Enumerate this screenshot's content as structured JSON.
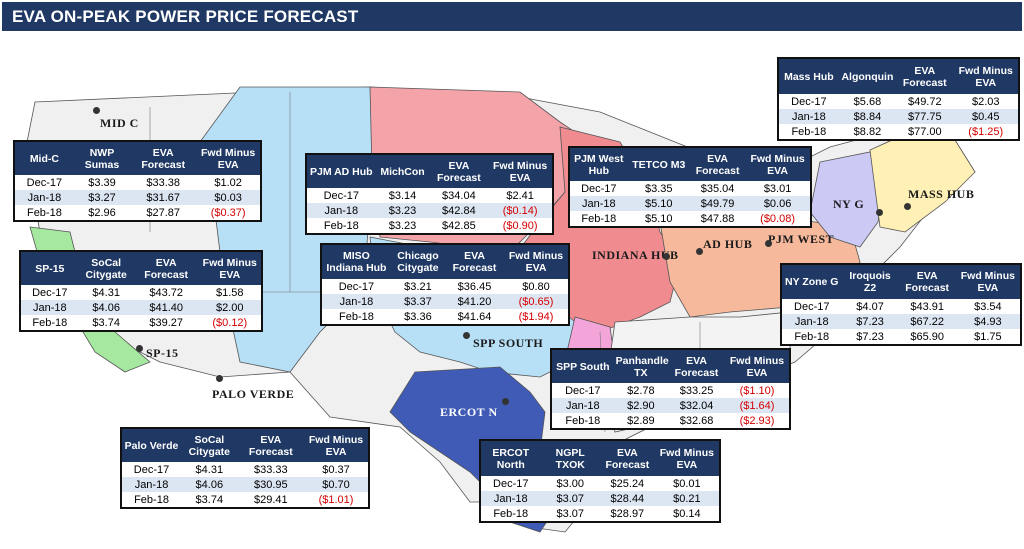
{
  "title": "EVA ON-PEAK POWER PRICE FORECAST",
  "colors": {
    "header": "#1f3864",
    "negative": "#d40000",
    "alt_row": "#dce6f2",
    "region_pink": "#f4a3a8",
    "region_salmon": "#f6b99c",
    "region_red": "#f08c90",
    "region_lightblue": "#b7e0f7",
    "region_darkblue": "#3f5bb5",
    "region_green": "#a7e8a0",
    "region_lavender": "#ccc9f5",
    "region_yellow": "#fff0b5",
    "region_magenta": "#f3a5d9"
  },
  "map_labels": {
    "mid_c": "MID C",
    "sp15": "SP-15",
    "palo_verde": "PALO VERDE",
    "ercot_n": "ERCOT N",
    "spp_south": "SPP SOUTH",
    "indiana_hub": "INDIANA HUB",
    "ad_hub": "AD HUB",
    "pjm_west": "PJM WEST",
    "ny_g": "NY G",
    "mass_hub": "MASS HUB"
  },
  "tables": {
    "midc": {
      "headers": [
        "Mid-C",
        "NWP Sumas",
        "EVA Forecast",
        "Fwd Minus EVA"
      ],
      "rows": [
        [
          "Dec-17",
          "$3.39",
          "$33.38",
          "$1.02"
        ],
        [
          "Jan-18",
          "$3.27",
          "$31.67",
          "$0.03"
        ],
        [
          "Feb-18",
          "$2.96",
          "$27.87",
          "($0.37)"
        ]
      ]
    },
    "sp15": {
      "headers": [
        "SP-15",
        "SoCal Citygate",
        "EVA Forecast",
        "Fwd Minus EVA"
      ],
      "rows": [
        [
          "Dec-17",
          "$4.31",
          "$43.72",
          "$1.58"
        ],
        [
          "Jan-18",
          "$4.06",
          "$41.40",
          "$2.00"
        ],
        [
          "Feb-18",
          "$3.74",
          "$39.27",
          "($0.12)"
        ]
      ]
    },
    "paloverde": {
      "headers": [
        "Palo Verde",
        "SoCal Citygate",
        "EVA Forecast",
        "Fwd Minus EVA"
      ],
      "rows": [
        [
          "Dec-17",
          "$4.31",
          "$33.33",
          "$0.37"
        ],
        [
          "Jan-18",
          "$4.06",
          "$30.95",
          "$0.70"
        ],
        [
          "Feb-18",
          "$3.74",
          "$29.41",
          "($1.01)"
        ]
      ]
    },
    "pjmad": {
      "headers": [
        "PJM AD Hub",
        "MichCon",
        "EVA Forecast",
        "Fwd Minus EVA"
      ],
      "rows": [
        [
          "Dec-17",
          "$3.14",
          "$34.04",
          "$2.41"
        ],
        [
          "Jan-18",
          "$3.23",
          "$42.84",
          "($0.14)"
        ],
        [
          "Feb-18",
          "$3.23",
          "$42.85",
          "($0.90)"
        ]
      ]
    },
    "miso": {
      "headers": [
        "MISO Indiana Hub",
        "Chicago Citygate",
        "EVA Forecast",
        "Fwd Minus EVA"
      ],
      "rows": [
        [
          "Dec-17",
          "$3.21",
          "$36.45",
          "$0.80"
        ],
        [
          "Jan-18",
          "$3.37",
          "$41.20",
          "($0.65)"
        ],
        [
          "Feb-18",
          "$3.36",
          "$41.64",
          "($1.94)"
        ]
      ]
    },
    "pjmwest": {
      "headers": [
        "PJM West Hub",
        "TETCO M3",
        "EVA Forecast",
        "Fwd Minus EVA"
      ],
      "rows": [
        [
          "Dec-17",
          "$3.35",
          "$35.04",
          "$3.01"
        ],
        [
          "Jan-18",
          "$5.10",
          "$49.79",
          "$0.06"
        ],
        [
          "Feb-18",
          "$5.10",
          "$47.88",
          "($0.08)"
        ]
      ]
    },
    "masshub": {
      "headers": [
        "Mass Hub",
        "Algonquin",
        "EVA Forecast",
        "Fwd Minus EVA"
      ],
      "rows": [
        [
          "Dec-17",
          "$5.68",
          "$49.72",
          "$2.03"
        ],
        [
          "Jan-18",
          "$8.84",
          "$77.75",
          "$0.45"
        ],
        [
          "Feb-18",
          "$8.82",
          "$77.00",
          "($1.25)"
        ]
      ]
    },
    "nyzoneg": {
      "headers": [
        "NY Zone G",
        "Iroquois Z2",
        "EVA Forecast",
        "Fwd Minus EVA"
      ],
      "rows": [
        [
          "Dec-17",
          "$4.07",
          "$43.91",
          "$3.54"
        ],
        [
          "Jan-18",
          "$7.23",
          "$67.22",
          "$4.93"
        ],
        [
          "Feb-18",
          "$7.23",
          "$65.90",
          "$1.75"
        ]
      ]
    },
    "sppsouth": {
      "headers": [
        "SPP South",
        "Panhandle TX",
        "EVA Forecast",
        "Fwd Minus EVA"
      ],
      "rows": [
        [
          "Dec-17",
          "$2.78",
          "$33.25",
          "($1.10)"
        ],
        [
          "Jan-18",
          "$2.90",
          "$32.04",
          "($1.64)"
        ],
        [
          "Feb-18",
          "$2.89",
          "$32.68",
          "($2.93)"
        ]
      ]
    },
    "ercot": {
      "headers": [
        "ERCOT North",
        "NGPL TXOK",
        "EVA Forecast",
        "Fwd Minus EVA"
      ],
      "rows": [
        [
          "Dec-17",
          "$3.00",
          "$25.24",
          "$0.01"
        ],
        [
          "Jan-18",
          "$3.07",
          "$28.44",
          "$0.21"
        ],
        [
          "Feb-18",
          "$3.07",
          "$28.97",
          "$0.14"
        ]
      ]
    }
  }
}
